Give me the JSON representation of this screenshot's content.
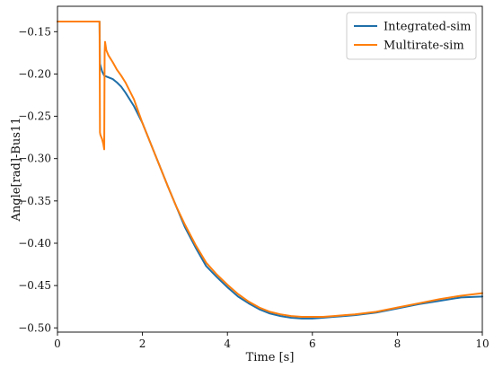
{
  "chart_data": {
    "type": "line",
    "xlabel": "Time [s]",
    "ylabel": "Angle[rad]-Bus11",
    "xlim": [
      0,
      10
    ],
    "ylim": [
      -0.505,
      -0.12
    ],
    "xticks": [
      0,
      2,
      4,
      6,
      8,
      10
    ],
    "xtick_labels": [
      "0",
      "2",
      "4",
      "6",
      "8",
      "10"
    ],
    "yticks": [
      -0.15,
      -0.2,
      -0.25,
      -0.3,
      -0.35,
      -0.4,
      -0.45,
      -0.5
    ],
    "ytick_labels": [
      "−0.15",
      "−0.20",
      "−0.25",
      "−0.30",
      "−0.35",
      "−0.40",
      "−0.45",
      "−0.50"
    ],
    "grid": false,
    "legend_position": "top-right",
    "series": [
      {
        "name": "Integrated-sim",
        "color": "#1f6fa8",
        "x": [
          0,
          0.99,
          1.0,
          1.05,
          1.1,
          1.2,
          1.3,
          1.4,
          1.5,
          1.6,
          1.8,
          2.0,
          2.2,
          2.4,
          2.6,
          2.8,
          3.0,
          3.25,
          3.5,
          3.75,
          4.0,
          4.25,
          4.5,
          4.75,
          5.0,
          5.25,
          5.5,
          5.75,
          6.0,
          6.25,
          6.5,
          6.75,
          7.0,
          7.5,
          8.0,
          8.5,
          9.0,
          9.5,
          10.0
        ],
        "y": [
          -0.138,
          -0.138,
          -0.188,
          -0.197,
          -0.202,
          -0.204,
          -0.206,
          -0.21,
          -0.215,
          -0.222,
          -0.238,
          -0.258,
          -0.283,
          -0.308,
          -0.333,
          -0.357,
          -0.381,
          -0.405,
          -0.427,
          -0.44,
          -0.452,
          -0.463,
          -0.471,
          -0.478,
          -0.483,
          -0.486,
          -0.488,
          -0.489,
          -0.489,
          -0.488,
          -0.487,
          -0.486,
          -0.485,
          -0.482,
          -0.477,
          -0.472,
          -0.468,
          -0.464,
          -0.463
        ]
      },
      {
        "name": "Multirate-sim",
        "color": "#ff7f0e",
        "x": [
          0,
          0.99,
          1.0,
          1.01,
          1.05,
          1.08,
          1.1,
          1.11,
          1.12,
          1.15,
          1.2,
          1.3,
          1.4,
          1.5,
          1.6,
          1.8,
          2.0,
          2.2,
          2.4,
          2.6,
          2.8,
          3.0,
          3.25,
          3.5,
          3.75,
          4.0,
          4.25,
          4.5,
          4.75,
          5.0,
          5.25,
          5.5,
          5.75,
          6.0,
          6.25,
          6.5,
          6.75,
          7.0,
          7.5,
          8.0,
          8.5,
          9.0,
          9.5,
          10.0
        ],
        "y": [
          -0.138,
          -0.138,
          -0.269,
          -0.272,
          -0.277,
          -0.283,
          -0.289,
          -0.175,
          -0.162,
          -0.172,
          -0.178,
          -0.186,
          -0.195,
          -0.202,
          -0.21,
          -0.23,
          -0.258,
          -0.283,
          -0.308,
          -0.333,
          -0.357,
          -0.378,
          -0.402,
          -0.423,
          -0.437,
          -0.449,
          -0.46,
          -0.469,
          -0.476,
          -0.481,
          -0.484,
          -0.486,
          -0.487,
          -0.487,
          -0.487,
          -0.486,
          -0.485,
          -0.484,
          -0.481,
          -0.476,
          -0.471,
          -0.466,
          -0.462,
          -0.459
        ]
      }
    ]
  }
}
